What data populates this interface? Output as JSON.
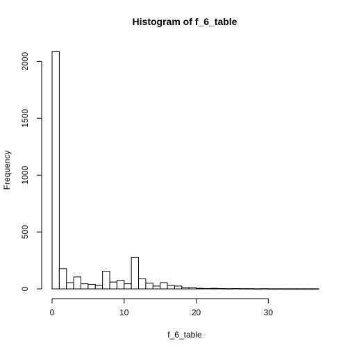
{
  "chart_data": {
    "type": "bar",
    "title": "Histogram of f_6_table",
    "xlabel": "f_6_table",
    "ylabel": "Frequency",
    "bin_width": 1,
    "xlim": [
      0,
      37
    ],
    "ylim": [
      0,
      2100
    ],
    "x_ticks": [
      0,
      10,
      20,
      30
    ],
    "y_ticks": [
      0,
      500,
      1000,
      1500,
      2000
    ],
    "bins": [
      {
        "start": 0,
        "end": 1,
        "count": 2085
      },
      {
        "start": 1,
        "end": 2,
        "count": 178
      },
      {
        "start": 2,
        "end": 3,
        "count": 55
      },
      {
        "start": 3,
        "end": 4,
        "count": 105
      },
      {
        "start": 4,
        "end": 5,
        "count": 45
      },
      {
        "start": 5,
        "end": 6,
        "count": 40
      },
      {
        "start": 6,
        "end": 7,
        "count": 30
      },
      {
        "start": 7,
        "end": 8,
        "count": 155
      },
      {
        "start": 8,
        "end": 9,
        "count": 60
      },
      {
        "start": 9,
        "end": 10,
        "count": 75
      },
      {
        "start": 10,
        "end": 11,
        "count": 45
      },
      {
        "start": 11,
        "end": 12,
        "count": 278
      },
      {
        "start": 12,
        "end": 13,
        "count": 88
      },
      {
        "start": 13,
        "end": 14,
        "count": 50
      },
      {
        "start": 14,
        "end": 15,
        "count": 25
      },
      {
        "start": 15,
        "end": 16,
        "count": 55
      },
      {
        "start": 16,
        "end": 17,
        "count": 30
      },
      {
        "start": 17,
        "end": 18,
        "count": 25
      },
      {
        "start": 18,
        "end": 19,
        "count": 10
      },
      {
        "start": 19,
        "end": 20,
        "count": 10
      },
      {
        "start": 20,
        "end": 21,
        "count": 5
      },
      {
        "start": 21,
        "end": 22,
        "count": 3
      },
      {
        "start": 22,
        "end": 23,
        "count": 5
      },
      {
        "start": 23,
        "end": 24,
        "count": 3
      },
      {
        "start": 24,
        "end": 25,
        "count": 2
      },
      {
        "start": 25,
        "end": 26,
        "count": 3
      },
      {
        "start": 26,
        "end": 27,
        "count": 2
      },
      {
        "start": 27,
        "end": 28,
        "count": 2
      },
      {
        "start": 28,
        "end": 29,
        "count": 1
      },
      {
        "start": 29,
        "end": 30,
        "count": 2
      },
      {
        "start": 30,
        "end": 31,
        "count": 1
      },
      {
        "start": 31,
        "end": 32,
        "count": 1
      },
      {
        "start": 32,
        "end": 33,
        "count": 1
      },
      {
        "start": 33,
        "end": 34,
        "count": 1
      },
      {
        "start": 34,
        "end": 35,
        "count": 1
      },
      {
        "start": 35,
        "end": 36,
        "count": 1
      },
      {
        "start": 36,
        "end": 37,
        "count": 1
      }
    ],
    "bar_fill": "#ffffff",
    "bar_stroke": "#000000",
    "grid": false
  }
}
